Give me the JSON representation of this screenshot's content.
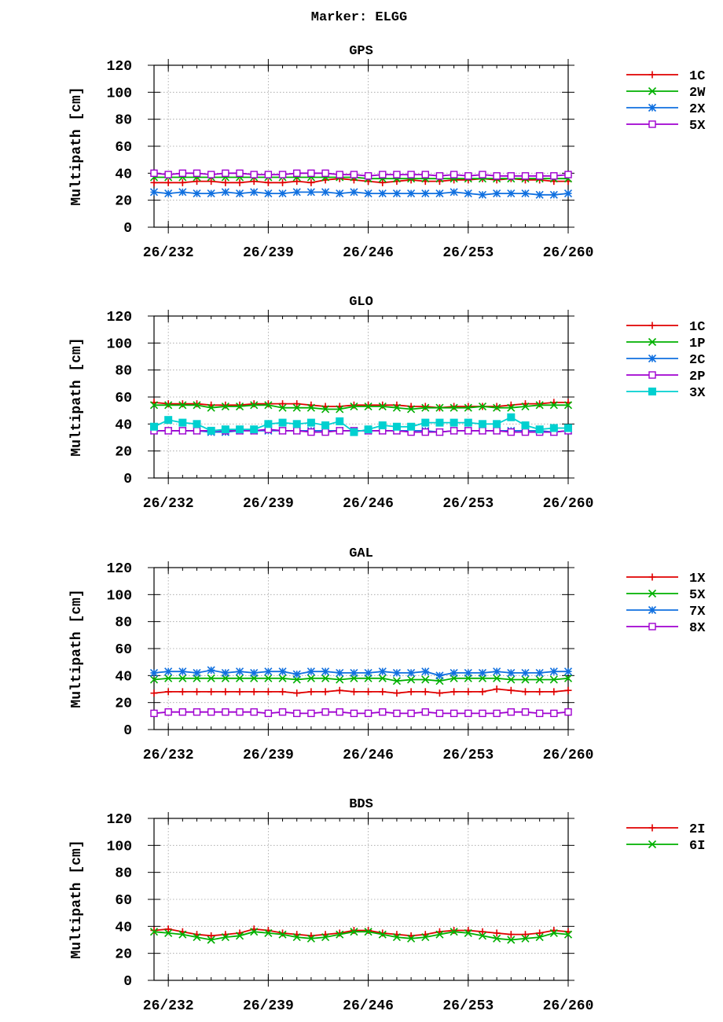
{
  "suptitle": "Marker: ELGG",
  "chart_data": [
    {
      "type": "line",
      "title": "GPS",
      "ylabel": "Multipath [cm]",
      "xlabel": "",
      "ylim": [
        0,
        120
      ],
      "yticks": [
        0,
        20,
        40,
        60,
        80,
        100,
        120
      ],
      "xlim": [
        231,
        260
      ],
      "xticks": [
        232,
        239,
        246,
        253,
        260
      ],
      "xtick_labels": [
        "26/232",
        "26/239",
        "26/246",
        "26/253",
        "26/260"
      ],
      "grid": true,
      "legend_position": "outside-right",
      "x": [
        231,
        232,
        233,
        234,
        235,
        236,
        237,
        238,
        239,
        240,
        241,
        242,
        243,
        244,
        245,
        246,
        247,
        248,
        249,
        250,
        251,
        252,
        253,
        254,
        255,
        256,
        257,
        258,
        259,
        260
      ],
      "series": [
        {
          "name": "1C",
          "color": "#e00000",
          "marker": "plus",
          "values": [
            33,
            33,
            33,
            34,
            34,
            33,
            33,
            34,
            33,
            33,
            34,
            33,
            35,
            36,
            35,
            34,
            33,
            34,
            35,
            34,
            34,
            35,
            35,
            36,
            35,
            36,
            35,
            35,
            34,
            34
          ]
        },
        {
          "name": "2W",
          "color": "#00b000",
          "marker": "x",
          "values": [
            37,
            37,
            37,
            37,
            37,
            37,
            37,
            37,
            37,
            37,
            37,
            37,
            37,
            37,
            37,
            36,
            36,
            36,
            36,
            36,
            36,
            36,
            36,
            36,
            36,
            36,
            36,
            36,
            36,
            36
          ]
        },
        {
          "name": "2X",
          "color": "#1070e0",
          "marker": "star",
          "values": [
            26,
            25,
            26,
            25,
            25,
            26,
            25,
            26,
            25,
            25,
            26,
            26,
            26,
            25,
            26,
            25,
            25,
            25,
            25,
            25,
            25,
            26,
            25,
            24,
            25,
            25,
            25,
            24,
            24,
            25
          ]
        },
        {
          "name": "5X",
          "color": "#a000d0",
          "marker": "square",
          "values": [
            40,
            39,
            40,
            40,
            39,
            40,
            40,
            39,
            39,
            39,
            40,
            40,
            40,
            39,
            39,
            38,
            39,
            39,
            39,
            39,
            38,
            39,
            38,
            39,
            38,
            38,
            38,
            38,
            38,
            39
          ]
        }
      ]
    },
    {
      "type": "line",
      "title": "GLO",
      "ylabel": "Multipath [cm]",
      "xlabel": "",
      "ylim": [
        0,
        120
      ],
      "yticks": [
        0,
        20,
        40,
        60,
        80,
        100,
        120
      ],
      "xlim": [
        231,
        260
      ],
      "xticks": [
        232,
        239,
        246,
        253,
        260
      ],
      "xtick_labels": [
        "26/232",
        "26/239",
        "26/246",
        "26/253",
        "26/260"
      ],
      "grid": true,
      "legend_position": "outside-right",
      "x": [
        231,
        232,
        233,
        234,
        235,
        236,
        237,
        238,
        239,
        240,
        241,
        242,
        243,
        244,
        245,
        246,
        247,
        248,
        249,
        250,
        251,
        252,
        253,
        254,
        255,
        256,
        257,
        258,
        259,
        260
      ],
      "series": [
        {
          "name": "1C",
          "color": "#e00000",
          "marker": "plus",
          "values": [
            56,
            55,
            55,
            55,
            54,
            54,
            54,
            55,
            55,
            55,
            55,
            54,
            53,
            53,
            54,
            54,
            54,
            54,
            53,
            53,
            52,
            53,
            53,
            53,
            53,
            54,
            55,
            55,
            56,
            56
          ]
        },
        {
          "name": "1P",
          "color": "#00b000",
          "marker": "x",
          "values": [
            54,
            54,
            54,
            54,
            52,
            53,
            53,
            54,
            54,
            52,
            52,
            52,
            51,
            51,
            53,
            53,
            53,
            52,
            51,
            52,
            52,
            52,
            52,
            53,
            52,
            52,
            53,
            54,
            54,
            54
          ]
        },
        {
          "name": "2C",
          "color": "#1070e0",
          "marker": "star",
          "values": [
            35,
            35,
            35,
            35,
            34,
            34,
            35,
            35,
            35,
            35,
            35,
            35,
            35,
            35,
            35,
            35,
            35,
            35,
            35,
            35,
            34,
            35,
            35,
            35,
            35,
            35,
            35,
            35,
            34,
            35
          ]
        },
        {
          "name": "2P",
          "color": "#a000d0",
          "marker": "square",
          "values": [
            35,
            35,
            35,
            35,
            35,
            35,
            35,
            35,
            36,
            35,
            35,
            34,
            34,
            35,
            35,
            35,
            35,
            35,
            34,
            34,
            34,
            35,
            35,
            35,
            35,
            34,
            34,
            34,
            34,
            35
          ]
        },
        {
          "name": "3X",
          "color": "#00d0d0",
          "marker": "filled-square",
          "values": [
            38,
            43,
            41,
            40,
            35,
            36,
            36,
            36,
            40,
            41,
            40,
            41,
            39,
            42,
            34,
            36,
            39,
            38,
            38,
            41,
            41,
            41,
            41,
            40,
            40,
            45,
            39,
            36,
            37,
            37
          ]
        }
      ]
    },
    {
      "type": "line",
      "title": "GAL",
      "ylabel": "Multipath [cm]",
      "xlabel": "",
      "ylim": [
        0,
        120
      ],
      "yticks": [
        0,
        20,
        40,
        60,
        80,
        100,
        120
      ],
      "xlim": [
        231,
        260
      ],
      "xticks": [
        232,
        239,
        246,
        253,
        260
      ],
      "xtick_labels": [
        "26/232",
        "26/239",
        "26/246",
        "26/253",
        "26/260"
      ],
      "grid": true,
      "legend_position": "outside-right",
      "x": [
        231,
        232,
        233,
        234,
        235,
        236,
        237,
        238,
        239,
        240,
        241,
        242,
        243,
        244,
        245,
        246,
        247,
        248,
        249,
        250,
        251,
        252,
        253,
        254,
        255,
        256,
        257,
        258,
        259,
        260
      ],
      "series": [
        {
          "name": "1X",
          "color": "#e00000",
          "marker": "plus",
          "values": [
            27,
            28,
            28,
            28,
            28,
            28,
            28,
            28,
            28,
            28,
            27,
            28,
            28,
            29,
            28,
            28,
            28,
            27,
            28,
            28,
            27,
            28,
            28,
            28,
            30,
            29,
            28,
            28,
            28,
            29
          ]
        },
        {
          "name": "5X",
          "color": "#00b000",
          "marker": "x",
          "values": [
            37,
            38,
            38,
            38,
            38,
            38,
            38,
            38,
            38,
            38,
            37,
            38,
            38,
            37,
            38,
            38,
            38,
            36,
            37,
            37,
            36,
            38,
            38,
            38,
            38,
            37,
            37,
            37,
            37,
            38
          ]
        },
        {
          "name": "7X",
          "color": "#1070e0",
          "marker": "star",
          "values": [
            42,
            43,
            43,
            42,
            44,
            42,
            43,
            42,
            43,
            43,
            41,
            43,
            43,
            42,
            42,
            42,
            43,
            42,
            42,
            43,
            40,
            42,
            42,
            42,
            43,
            42,
            42,
            42,
            43,
            43
          ]
        },
        {
          "name": "8X",
          "color": "#a000d0",
          "marker": "square",
          "values": [
            12,
            13,
            13,
            13,
            13,
            13,
            13,
            13,
            12,
            13,
            12,
            12,
            13,
            13,
            12,
            12,
            13,
            12,
            12,
            13,
            12,
            12,
            12,
            12,
            12,
            13,
            13,
            12,
            12,
            13
          ]
        }
      ]
    },
    {
      "type": "line",
      "title": "BDS",
      "ylabel": "Multipath [cm]",
      "xlabel": "",
      "ylim": [
        0,
        120
      ],
      "yticks": [
        0,
        20,
        40,
        60,
        80,
        100,
        120
      ],
      "xlim": [
        231,
        260
      ],
      "xticks": [
        232,
        239,
        246,
        253,
        260
      ],
      "xtick_labels": [
        "26/232",
        "26/239",
        "26/246",
        "26/253",
        "26/260"
      ],
      "grid": true,
      "legend_position": "outside-right",
      "x": [
        231,
        232,
        233,
        234,
        235,
        236,
        237,
        238,
        239,
        240,
        241,
        242,
        243,
        244,
        245,
        246,
        247,
        248,
        249,
        250,
        251,
        252,
        253,
        254,
        255,
        256,
        257,
        258,
        259,
        260
      ],
      "series": [
        {
          "name": "2I",
          "color": "#e00000",
          "marker": "plus",
          "values": [
            37,
            38,
            36,
            34,
            33,
            34,
            35,
            38,
            37,
            35,
            34,
            33,
            34,
            35,
            37,
            37,
            35,
            34,
            33,
            34,
            36,
            37,
            37,
            36,
            35,
            34,
            34,
            35,
            37,
            36
          ]
        },
        {
          "name": "6I",
          "color": "#00b000",
          "marker": "x",
          "values": [
            36,
            35,
            34,
            32,
            30,
            32,
            33,
            36,
            35,
            34,
            32,
            31,
            32,
            34,
            36,
            36,
            34,
            32,
            31,
            32,
            34,
            36,
            35,
            33,
            31,
            30,
            31,
            32,
            35,
            34
          ]
        }
      ]
    }
  ]
}
